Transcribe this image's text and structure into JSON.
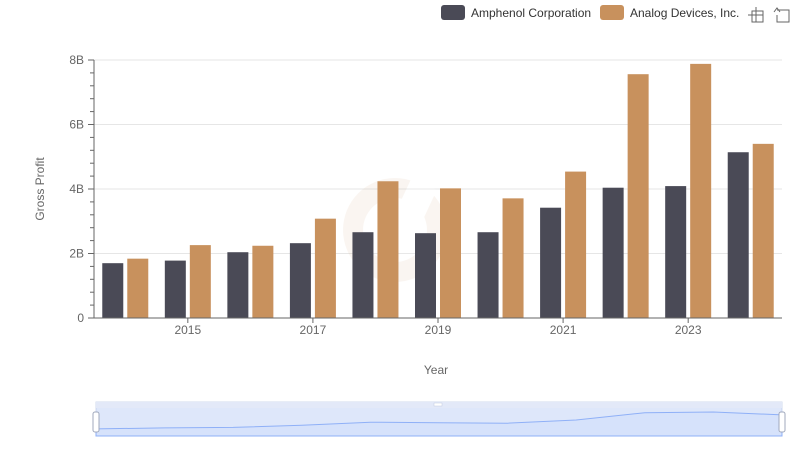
{
  "chart_data": {
    "type": "bar",
    "xlabel": "Year",
    "ylabel": "Gross Profit",
    "x": [
      2014,
      2015,
      2016,
      2017,
      2018,
      2019,
      2020,
      2021,
      2022,
      2023,
      2024
    ],
    "x_tick_labels": [
      "2015",
      "2017",
      "2019",
      "2021",
      "2023"
    ],
    "y_tick_labels": [
      "0",
      "2B",
      "4B",
      "6B",
      "8B"
    ],
    "ylim": [
      0,
      8000000000
    ],
    "grid": true,
    "legend_position": "top-right",
    "series": [
      {
        "name": "Amphenol Corporation",
        "color": "#4a4a56",
        "values": [
          1700000000,
          1780000000,
          2040000000,
          2320000000,
          2660000000,
          2630000000,
          2660000000,
          3420000000,
          4040000000,
          4090000000,
          5140000000
        ]
      },
      {
        "name": "Analog Devices, Inc.",
        "color": "#c8915d",
        "values": [
          1840000000,
          2260000000,
          2240000000,
          3080000000,
          4240000000,
          4020000000,
          3710000000,
          4540000000,
          7560000000,
          7880000000,
          5400000000
        ]
      }
    ]
  },
  "toolbox": {
    "icons": [
      "zoom-icon",
      "restore-icon"
    ]
  },
  "data_zoom": {
    "range_start_percent": 0,
    "range_end_percent": 100
  }
}
